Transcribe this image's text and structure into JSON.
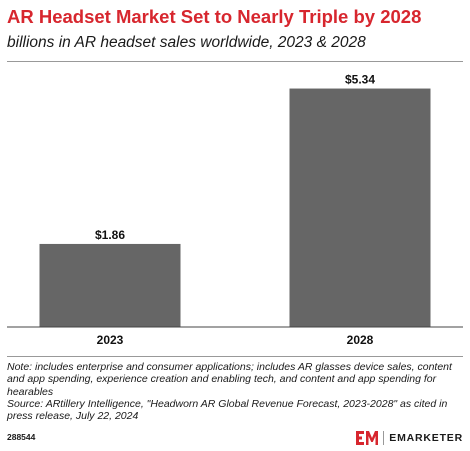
{
  "header": {
    "title": "AR Headset Market Set to Nearly Triple by 2028",
    "subtitle": "billions in AR headset sales worldwide, 2023 & 2028"
  },
  "chart_data": {
    "type": "bar",
    "categories": [
      "2023",
      "2028"
    ],
    "values": [
      1.86,
      5.34
    ],
    "value_labels": [
      "$1.86",
      "$5.34"
    ],
    "title": "AR Headset Market Set to Nearly Triple by 2028",
    "subtitle": "billions in AR headset sales worldwide, 2023 & 2028",
    "xlabel": "",
    "ylabel": "",
    "ylim": [
      0,
      5.8
    ],
    "grid": false,
    "bar_color": "#666666"
  },
  "footer": {
    "note": "Note: includes enterprise and consumer applications; includes AR glasses device sales, content and app spending, experience creation and enabling tech, and content and app spending for hearables",
    "source": "Source: ARtillery Intelligence, \"Headworn AR Global Revenue Forecast, 2023-2028\" as cited in press release, July 22, 2024",
    "chart_id": "288544",
    "brand": "EMARKETER",
    "brand_color": "#d7262e"
  }
}
